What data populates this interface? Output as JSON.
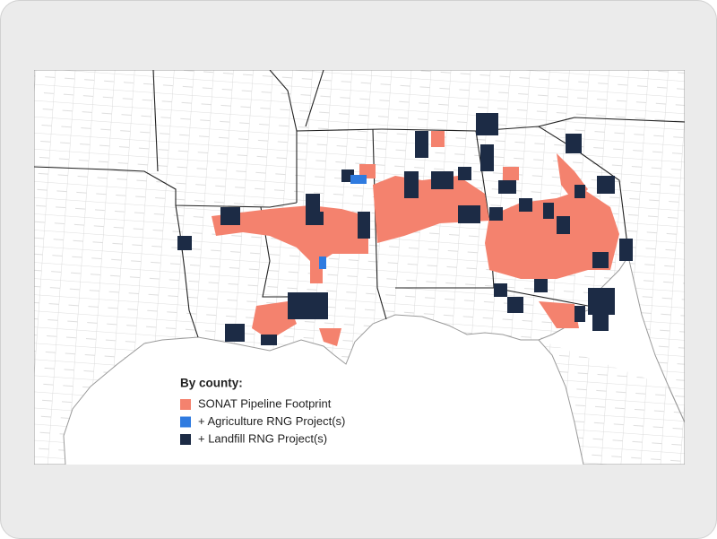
{
  "legend": {
    "title": "By county:",
    "items": [
      {
        "label": "SONAT Pipeline Footprint",
        "color": "#f4826e"
      },
      {
        "label": "+ Agriculture RNG Project(s)",
        "color": "#2f7be0"
      },
      {
        "label": "+ Landfill RNG Project(s)",
        "color": "#1c2b45"
      }
    ]
  }
}
